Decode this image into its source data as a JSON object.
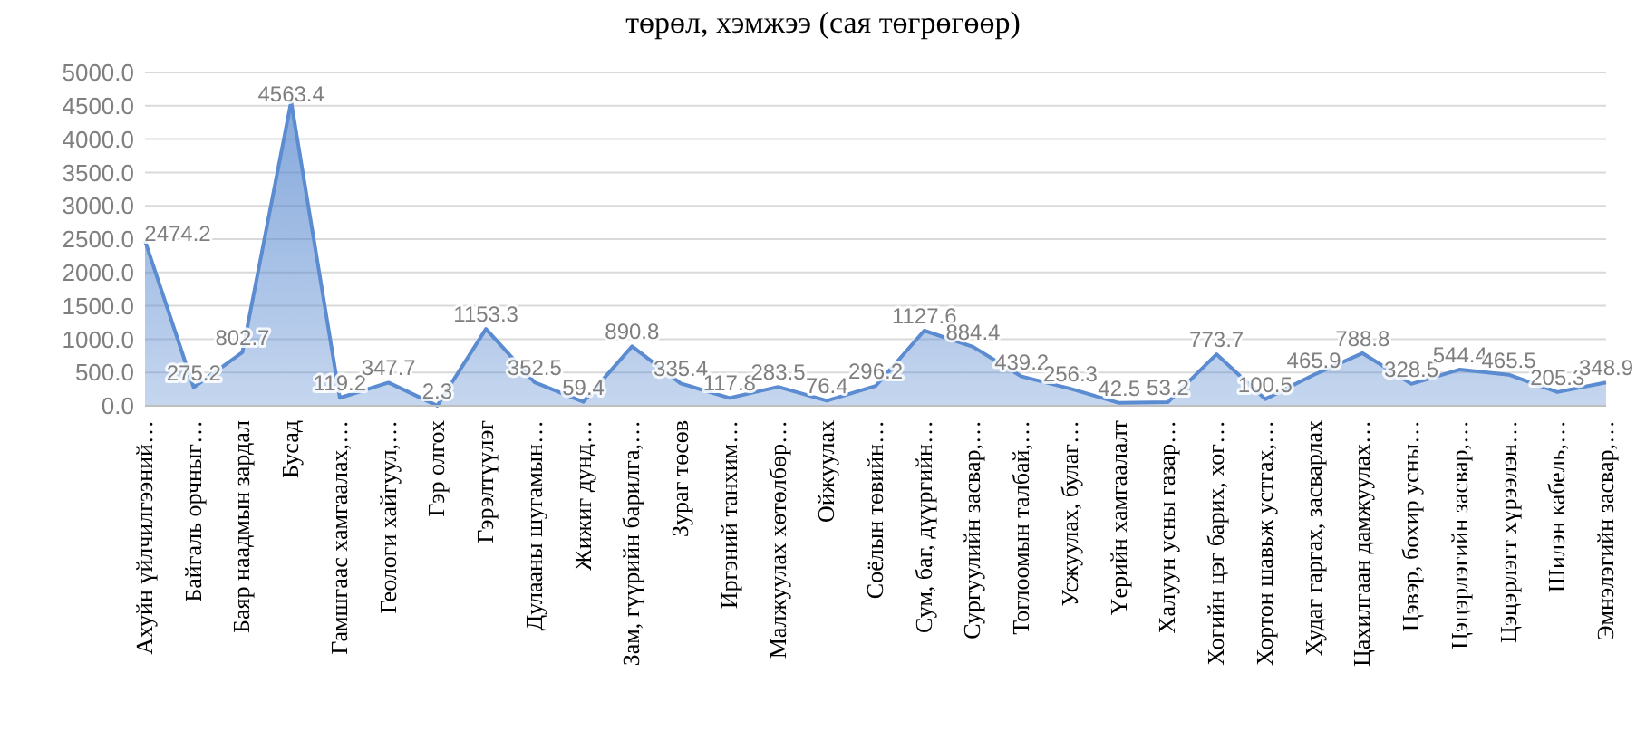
{
  "chart_data": {
    "type": "area",
    "title": "төрөл, хэмжээ (сая төгрөгөөр)",
    "categories": [
      "Ахуйн үйлчилгээний…",
      "Байгаль орчныг…",
      "Баяр наадмын зардал",
      "Бусад",
      "Гамшгаас хамгаалах,…",
      "Геологи хайгуул,…",
      "Гэр олгох",
      "Гэрэлтүүлэг",
      "Дулааны шугамын…",
      "Жижиг дунд…",
      "Зам, гүүрийн барилга,…",
      "Зураг төсөв",
      "Иргэний танхим…",
      "Малжуулах хөтөлбөр…",
      "Ойжуулах",
      "Соёлын төвийн…",
      "Сум, баг, дүүргийн…",
      "Сургуулийн засвар,…",
      "Тоглоомын талбай,…",
      "Усжуулах, булаг…",
      "Үерийн хамгаалалт",
      "Халуун усны газар…",
      "Хогийн цэг барих, хог…",
      "Хортон шавьж устгах,…",
      "Худаг гаргах, засварлах",
      "Цахилгаан дамжуулах…",
      "Цэвэр, бохир усны…",
      "Цэцэрлэгийн засвар,…",
      "Цэцэрлэгт хүрээлэн…",
      "Шилэн кабель,…",
      "Эмнэлэгийн засвар,…"
    ],
    "series": [
      {
        "color": "#5b8bd0",
        "values": [
          2474.2,
          275.2,
          802.7,
          4563.4,
          119.2,
          347.7,
          2.3,
          1153.3,
          352.5,
          59.4,
          890.8,
          335.4,
          117.8,
          283.5,
          76.4,
          296.2,
          1127.6,
          884.4,
          439.2,
          256.3,
          42.5,
          53.2,
          773.7,
          100.5,
          465.9,
          788.8,
          328.5,
          544.4,
          465.5,
          205.3,
          348.9
        ]
      }
    ],
    "ylim": [
      0,
      5000
    ],
    "yticks": [
      {
        "value": 0,
        "label": "0.0"
      },
      {
        "value": 500,
        "label": "500.0"
      },
      {
        "value": 1000,
        "label": "1000.0"
      },
      {
        "value": 1500,
        "label": "1500.0"
      },
      {
        "value": 2000,
        "label": "2000.0"
      },
      {
        "value": 2500,
        "label": "2500.0"
      },
      {
        "value": 3000,
        "label": "3000.0"
      },
      {
        "value": 3500,
        "label": "3500.0"
      },
      {
        "value": 4000,
        "label": "4000.0"
      },
      {
        "value": 4500,
        "label": "4500.0"
      },
      {
        "value": 5000,
        "label": "5000.0"
      }
    ],
    "grid": "y",
    "data_labels": true
  }
}
